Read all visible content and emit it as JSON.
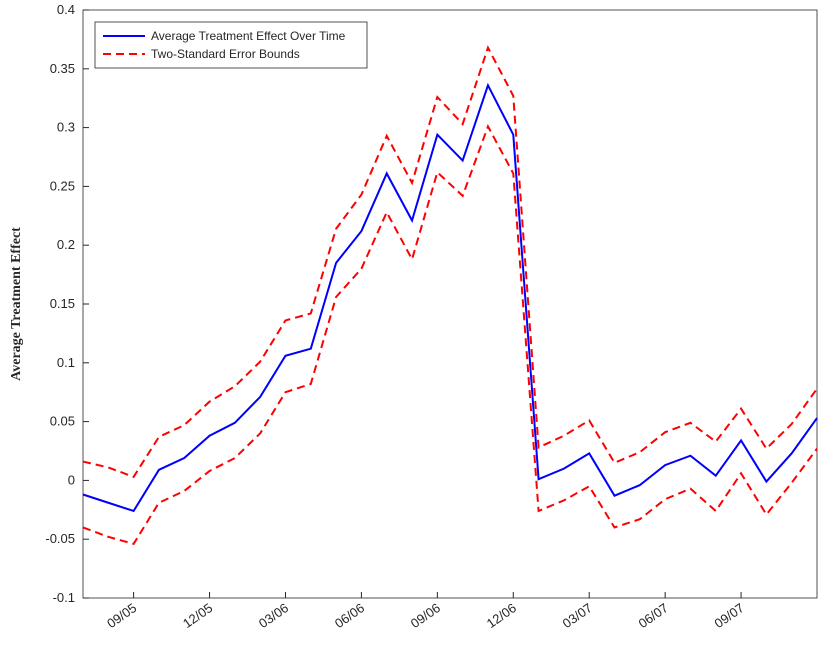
{
  "chart_data": {
    "type": "line",
    "y_label": "Average Treatment Effect",
    "categories": [
      null,
      null,
      "09/05",
      null,
      null,
      "12/05",
      null,
      null,
      "03/06",
      null,
      null,
      "06/06",
      null,
      null,
      "09/06",
      null,
      null,
      "12/06",
      null,
      null,
      "03/07",
      null,
      null,
      "06/07",
      null,
      null,
      "09/07",
      null,
      null,
      null
    ],
    "series": [
      {
        "name": "Average Treatment Effect Over Time",
        "color": "#0000ff",
        "dash": "solid",
        "values": [
          -0.012,
          -0.019,
          -0.026,
          0.009,
          0.019,
          0.038,
          0.049,
          0.071,
          0.106,
          0.112,
          0.185,
          0.212,
          0.261,
          0.221,
          0.294,
          0.272,
          0.336,
          0.294,
          0.001,
          0.01,
          0.023,
          -0.013,
          -0.004,
          0.013,
          0.021,
          0.004,
          0.034,
          -0.001,
          0.023,
          0.053
        ]
      },
      {
        "name": "Two-Standard Error Bounds",
        "color": "#ff0000",
        "dash": "dashed",
        "values": [
          0.016,
          0.011,
          0.003,
          0.037,
          0.047,
          0.067,
          0.08,
          0.101,
          0.136,
          0.142,
          0.214,
          0.243,
          0.293,
          0.253,
          0.326,
          0.303,
          0.368,
          0.327,
          0.028,
          0.038,
          0.051,
          0.015,
          0.024,
          0.041,
          0.049,
          0.033,
          0.061,
          0.027,
          0.048,
          0.078
        ]
      },
      {
        "color": "#ff0000",
        "dash": "dashed",
        "values": [
          -0.04,
          -0.048,
          -0.054,
          -0.019,
          -0.009,
          0.008,
          0.019,
          0.04,
          0.075,
          0.082,
          0.156,
          0.18,
          0.228,
          0.188,
          0.262,
          0.242,
          0.301,
          0.261,
          -0.026,
          -0.017,
          -0.005,
          -0.04,
          -0.033,
          -0.016,
          -0.007,
          -0.026,
          0.006,
          -0.029,
          -0.002,
          0.027
        ]
      }
    ],
    "ylim": [
      -0.1,
      0.4
    ],
    "yticks": [
      -0.1,
      -0.05,
      0,
      0.05,
      0.1,
      0.15,
      0.2,
      0.25,
      0.3,
      0.35,
      0.4
    ],
    "legend": "top-left"
  }
}
